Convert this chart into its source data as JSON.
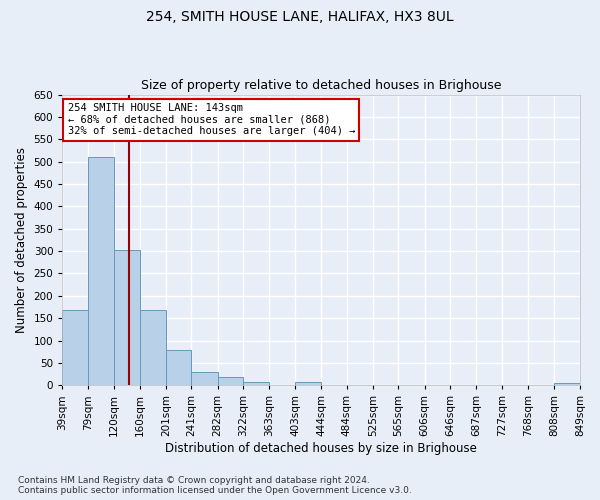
{
  "title1": "254, SMITH HOUSE LANE, HALIFAX, HX3 8UL",
  "title2": "Size of property relative to detached houses in Brighouse",
  "xlabel": "Distribution of detached houses by size in Brighouse",
  "ylabel": "Number of detached properties",
  "bins": [
    "39sqm",
    "79sqm",
    "120sqm",
    "160sqm",
    "201sqm",
    "241sqm",
    "282sqm",
    "322sqm",
    "363sqm",
    "403sqm",
    "444sqm",
    "484sqm",
    "525sqm",
    "565sqm",
    "606sqm",
    "646sqm",
    "687sqm",
    "727sqm",
    "768sqm",
    "808sqm",
    "849sqm"
  ],
  "bin_edges": [
    39,
    79,
    120,
    160,
    201,
    241,
    282,
    322,
    363,
    403,
    444,
    484,
    525,
    565,
    606,
    646,
    687,
    727,
    768,
    808,
    849
  ],
  "values": [
    168,
    510,
    302,
    168,
    78,
    30,
    19,
    7,
    0,
    8,
    0,
    0,
    0,
    0,
    0,
    0,
    0,
    0,
    0,
    6
  ],
  "bar_color": "#b8d0e8",
  "bar_edge_color": "#6699bb",
  "bg_color": "#e8eef8",
  "grid_color": "#ffffff",
  "vline_x": 143,
  "vline_color": "#990000",
  "annotation_text": "254 SMITH HOUSE LANE: 143sqm\n← 68% of detached houses are smaller (868)\n32% of semi-detached houses are larger (404) →",
  "annotation_box_color": "#ffffff",
  "annotation_box_edge": "#cc0000",
  "ylim": [
    0,
    650
  ],
  "yticks": [
    0,
    50,
    100,
    150,
    200,
    250,
    300,
    350,
    400,
    450,
    500,
    550,
    600,
    650
  ],
  "footnote": "Contains HM Land Registry data © Crown copyright and database right 2024.\nContains public sector information licensed under the Open Government Licence v3.0.",
  "title1_fontsize": 10,
  "title2_fontsize": 9,
  "xlabel_fontsize": 8.5,
  "ylabel_fontsize": 8.5,
  "tick_fontsize": 7.5,
  "annotation_fontsize": 7.5,
  "footnote_fontsize": 6.5
}
